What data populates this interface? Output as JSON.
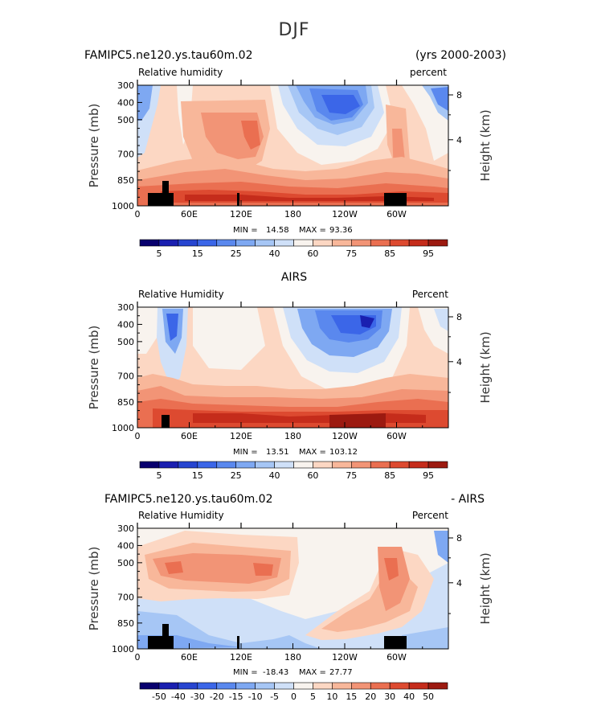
{
  "figure": {
    "title": "DJF"
  },
  "chart_data": [
    {
      "type": "heatmap",
      "left_title": "FAMIPC5.ne120.ys.tau60m.02",
      "right_title": "(yrs 2000-2003)",
      "variable": "Relative humidity",
      "units": "percent",
      "ylabel": "Pressure (mb)",
      "y2label": "Height (km)",
      "yticks": [
        "300",
        "400",
        "500",
        "700",
        "850",
        "1000"
      ],
      "y2ticks": [
        "8",
        "4"
      ],
      "xticks": [
        "0",
        "60E",
        "120E",
        "180",
        "120W",
        "60W"
      ],
      "min_label": "MIN =",
      "min": "14.58",
      "max_label": "MAX =",
      "max": "93.36",
      "colorbar_labels": [
        "5",
        "15",
        "25",
        "40",
        "60",
        "75",
        "85",
        "95"
      ]
    },
    {
      "type": "heatmap",
      "left_title": "",
      "center_title": "AIRS",
      "right_title": "",
      "variable": "Relative Humidity",
      "units": "Percent",
      "ylabel": "Pressure (mb)",
      "y2label": "Height (km)",
      "yticks": [
        "300",
        "400",
        "500",
        "700",
        "850",
        "1000"
      ],
      "y2ticks": [
        "8",
        "4"
      ],
      "xticks": [
        "0",
        "60E",
        "120E",
        "180",
        "120W",
        "60W"
      ],
      "min_label": "MIN =",
      "min": "13.51",
      "max_label": "MAX =",
      "max": "103.12",
      "colorbar_labels": [
        "5",
        "15",
        "25",
        "40",
        "60",
        "75",
        "85",
        "95"
      ]
    },
    {
      "type": "heatmap",
      "left_title": "FAMIPC5.ne120.ys.tau60m.02",
      "right_title": "- AIRS",
      "variable": "Relative Humidity",
      "units": "Percent",
      "ylabel": "Pressure (mb)",
      "y2label": "Height (km)",
      "yticks": [
        "300",
        "400",
        "500",
        "700",
        "850",
        "1000"
      ],
      "y2ticks": [
        "8",
        "4"
      ],
      "xticks": [
        "0",
        "60E",
        "120E",
        "180",
        "120W",
        "60W"
      ],
      "min_label": "MIN =",
      "min": "-18.43",
      "max_label": "MAX =",
      "max": "27.77",
      "colorbar_labels": [
        "-50",
        "-40",
        "-30",
        "-20",
        "-15",
        "-10",
        "-5",
        "0",
        "5",
        "10",
        "15",
        "20",
        "30",
        "40",
        "50"
      ]
    }
  ],
  "colors": {
    "scale": [
      "#08006e",
      "#1a1fb0",
      "#2745d0",
      "#3b66e8",
      "#5a88ee",
      "#7ea8f2",
      "#a6c6f5",
      "#cfe0f8",
      "#f8f3ee",
      "#fcd7c3",
      "#f8b79a",
      "#f29476",
      "#ea6f51",
      "#dd4a30",
      "#c52c1b",
      "#9c1a10"
    ]
  }
}
